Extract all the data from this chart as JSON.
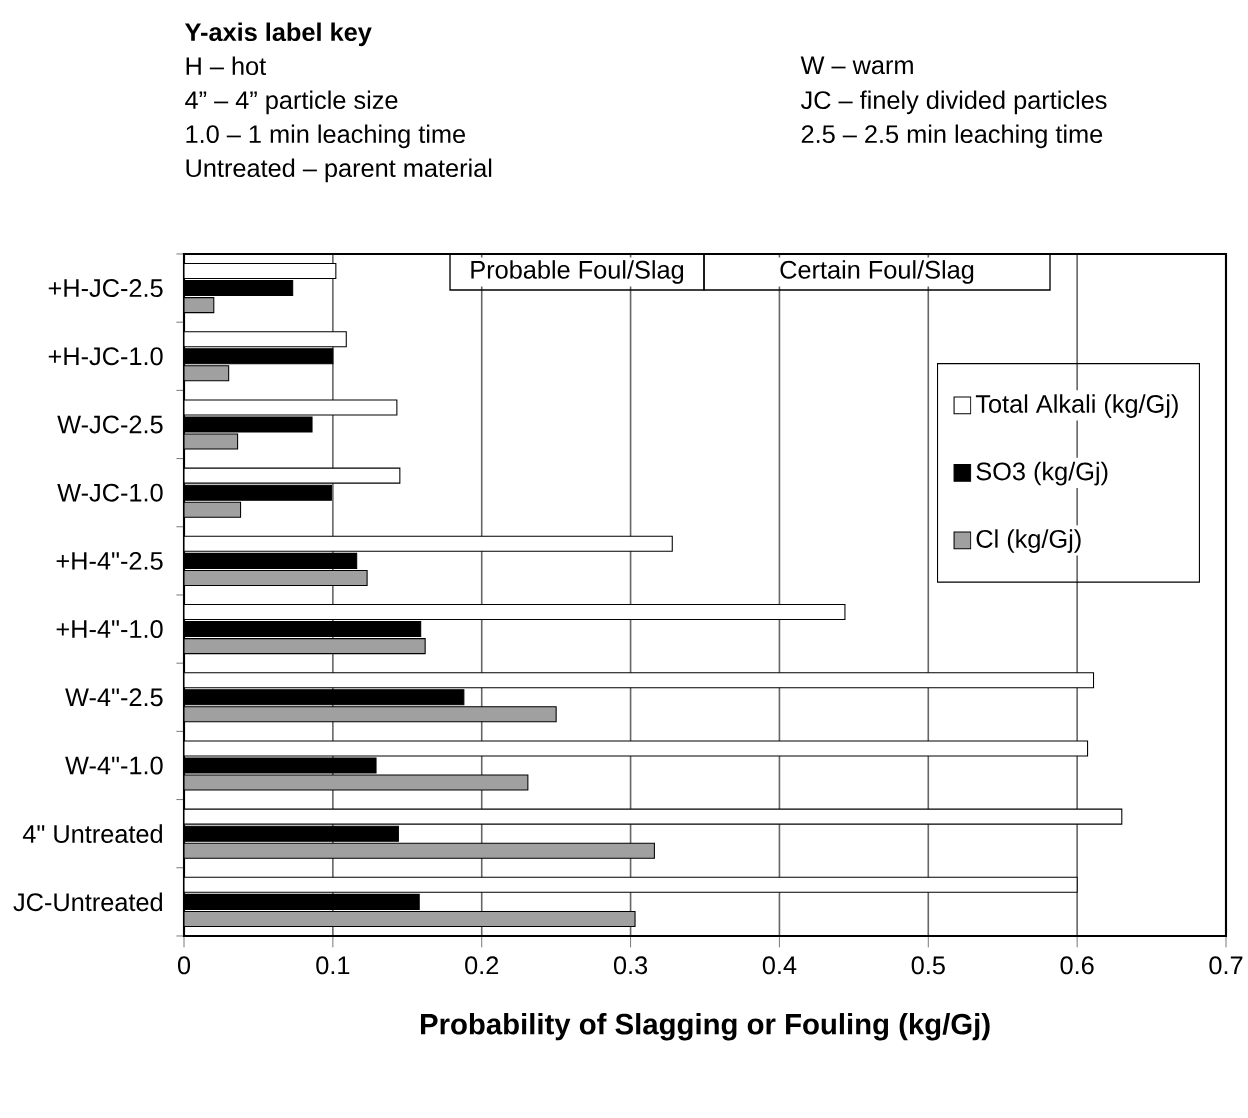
{
  "chart_data": {
    "type": "bar",
    "orientation": "horizontal",
    "title": "Y-axis label key",
    "xlabel": "Probability of Slagging or Fouling (kg/Gj)",
    "annotations": [
      "H – hot",
      "W – warm",
      "4” – 4” particle size",
      "JC – finely divided particles",
      "1.0 – 1 min leaching time",
      "2.5 – 2.5 min leaching time",
      "Untreated – parent material",
      "Probable Foul/Slag",
      "Certain Foul/Slag"
    ],
    "categories": [
      "+H-JC-2.5",
      "+H-JC-1.0",
      "W-JC-2.5",
      "W-JC-1.0",
      "+H-4\"-2.5",
      "+H-4\"-1.0",
      "W-4\"-2.5",
      "W-4\"-1.0",
      "4\" Untreated",
      "JC-Untreated"
    ],
    "series": [
      {
        "name": "Total Alkali (kg/Gj)",
        "color": "#ffffff",
        "values": [
          0.102,
          0.109,
          0.143,
          0.145,
          0.328,
          0.444,
          0.611,
          0.607,
          0.63,
          0.6
        ]
      },
      {
        "name": "SO3 (kg/Gj)",
        "color": "#000000",
        "values": [
          0.073,
          0.1,
          0.086,
          0.099,
          0.116,
          0.159,
          0.188,
          0.129,
          0.144,
          0.158
        ]
      },
      {
        "name": "Cl (kg/Gj)",
        "color": "#a0a0a0",
        "values": [
          0.02,
          0.03,
          0.036,
          0.038,
          0.123,
          0.162,
          0.25,
          0.231,
          0.316,
          0.303
        ]
      }
    ],
    "xlim": [
      0,
      0.7
    ],
    "xticks": [
      0,
      0.1,
      0.2,
      0.3,
      0.4,
      0.5,
      0.6,
      0.7
    ],
    "grid": "x",
    "legend": "top right"
  }
}
